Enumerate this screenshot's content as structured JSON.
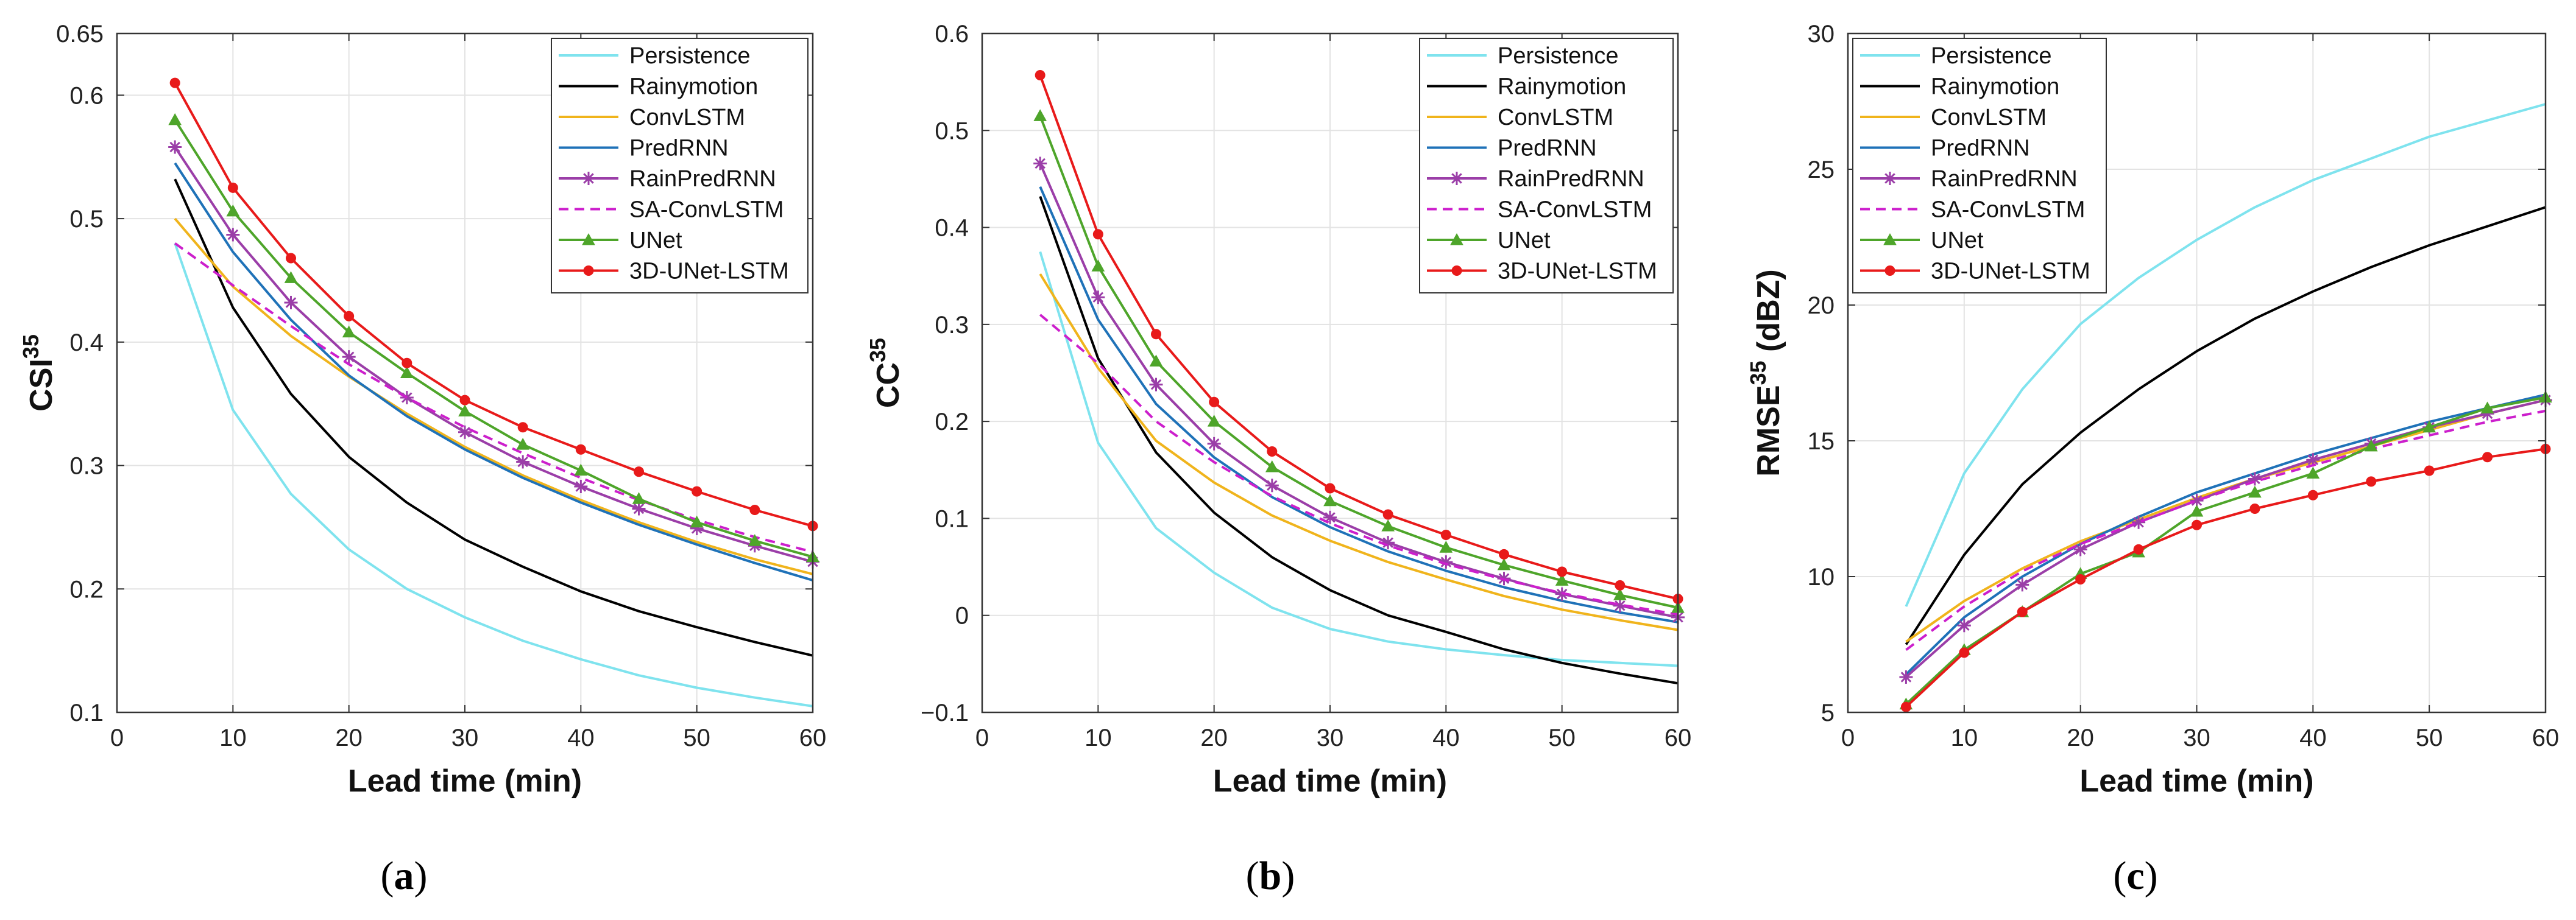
{
  "chart_data": [
    {
      "type": "line",
      "panel_label": "(a)",
      "xlabel": "Lead time (min)",
      "ylabel_main": "CSI",
      "ylabel_sup": "35",
      "ylabel_unit": "",
      "xlim": [
        0,
        60
      ],
      "ylim": [
        0.1,
        0.65
      ],
      "xticks": [
        0,
        10,
        20,
        30,
        40,
        50,
        60
      ],
      "yticks": [
        0.1,
        0.2,
        0.3,
        0.4,
        0.5,
        0.6,
        0.65
      ],
      "ytick_labels": [
        "0.1",
        "0.2",
        "0.3",
        "0.4",
        "0.5",
        "0.6",
        "0.65"
      ],
      "legend_position": "top-right",
      "grid": true,
      "x": [
        5,
        10,
        15,
        20,
        25,
        30,
        35,
        40,
        45,
        50,
        55,
        60
      ],
      "series": [
        {
          "name": "Persistence",
          "color": "#7fe3ee",
          "marker": "none",
          "dash": "solid",
          "values": [
            0.48,
            0.345,
            0.277,
            0.232,
            0.2,
            0.177,
            0.158,
            0.143,
            0.13,
            0.12,
            0.112,
            0.105
          ]
        },
        {
          "name": "Rainymotion",
          "color": "#000000",
          "marker": "none",
          "dash": "solid",
          "values": [
            0.532,
            0.428,
            0.358,
            0.307,
            0.27,
            0.24,
            0.218,
            0.198,
            0.182,
            0.169,
            0.157,
            0.146
          ]
        },
        {
          "name": "ConvLSTM",
          "color": "#f0b41c",
          "marker": "none",
          "dash": "solid",
          "values": [
            0.5,
            0.445,
            0.405,
            0.372,
            0.342,
            0.315,
            0.292,
            0.272,
            0.254,
            0.238,
            0.224,
            0.212
          ]
        },
        {
          "name": "PredRNN",
          "color": "#1f72b8",
          "marker": "none",
          "dash": "solid",
          "values": [
            0.545,
            0.473,
            0.418,
            0.373,
            0.34,
            0.313,
            0.29,
            0.27,
            0.252,
            0.236,
            0.221,
            0.207
          ]
        },
        {
          "name": "RainPredRNN",
          "color": "#9b3ea8",
          "marker": "asterisk",
          "dash": "solid",
          "values": [
            0.558,
            0.487,
            0.432,
            0.388,
            0.355,
            0.327,
            0.303,
            0.283,
            0.265,
            0.249,
            0.235,
            0.222
          ]
        },
        {
          "name": "SA-ConvLSTM",
          "color": "#cc1fcc",
          "marker": "none",
          "dash": "dashed",
          "values": [
            0.48,
            0.446,
            0.413,
            0.382,
            0.355,
            0.331,
            0.31,
            0.29,
            0.272,
            0.256,
            0.242,
            0.23
          ]
        },
        {
          "name": "UNet",
          "color": "#4ea52a",
          "marker": "triangle",
          "dash": "solid",
          "values": [
            0.58,
            0.506,
            0.452,
            0.408,
            0.375,
            0.344,
            0.317,
            0.296,
            0.273,
            0.254,
            0.239,
            0.226
          ]
        },
        {
          "name": "3D-UNet-LSTM",
          "color": "#e81a1a",
          "marker": "circle",
          "dash": "solid",
          "values": [
            0.61,
            0.525,
            0.468,
            0.421,
            0.383,
            0.353,
            0.331,
            0.313,
            0.295,
            0.279,
            0.264,
            0.251
          ]
        }
      ]
    },
    {
      "type": "line",
      "panel_label": "(b)",
      "xlabel": "Lead time (min)",
      "ylabel_main": "CC",
      "ylabel_sup": "35",
      "ylabel_unit": "",
      "xlim": [
        0,
        60
      ],
      "ylim": [
        -0.1,
        0.6
      ],
      "xticks": [
        0,
        10,
        20,
        30,
        40,
        50,
        60
      ],
      "yticks": [
        -0.1,
        0,
        0.1,
        0.2,
        0.3,
        0.4,
        0.5,
        0.6
      ],
      "ytick_labels": [
        "−0.1",
        "0",
        "0.1",
        "0.2",
        "0.3",
        "0.4",
        "0.5",
        "0.6"
      ],
      "legend_position": "top-right",
      "grid": true,
      "x": [
        5,
        10,
        15,
        20,
        25,
        30,
        35,
        40,
        45,
        50,
        55,
        60
      ],
      "series": [
        {
          "name": "Persistence",
          "color": "#7fe3ee",
          "marker": "none",
          "dash": "solid",
          "values": [
            0.375,
            0.178,
            0.09,
            0.044,
            0.008,
            -0.014,
            -0.027,
            -0.035,
            -0.041,
            -0.046,
            -0.049,
            -0.052
          ]
        },
        {
          "name": "Rainymotion",
          "color": "#000000",
          "marker": "none",
          "dash": "solid",
          "values": [
            0.432,
            0.265,
            0.168,
            0.106,
            0.06,
            0.026,
            0.0,
            -0.017,
            -0.035,
            -0.049,
            -0.06,
            -0.07
          ]
        },
        {
          "name": "ConvLSTM",
          "color": "#f0b41c",
          "marker": "none",
          "dash": "solid",
          "values": [
            0.352,
            0.255,
            0.18,
            0.137,
            0.103,
            0.077,
            0.055,
            0.037,
            0.02,
            0.006,
            -0.005,
            -0.015
          ]
        },
        {
          "name": "PredRNN",
          "color": "#1f72b8",
          "marker": "none",
          "dash": "solid",
          "values": [
            0.442,
            0.305,
            0.218,
            0.163,
            0.122,
            0.091,
            0.066,
            0.046,
            0.029,
            0.015,
            0.003,
            -0.007
          ]
        },
        {
          "name": "RainPredRNN",
          "color": "#9b3ea8",
          "marker": "asterisk",
          "dash": "solid",
          "values": [
            0.466,
            0.328,
            0.238,
            0.177,
            0.134,
            0.101,
            0.075,
            0.055,
            0.038,
            0.022,
            0.01,
            -0.002
          ]
        },
        {
          "name": "SA-ConvLSTM",
          "color": "#cc1fcc",
          "marker": "none",
          "dash": "dashed",
          "values": [
            0.31,
            0.26,
            0.2,
            0.158,
            0.123,
            0.095,
            0.072,
            0.053,
            0.037,
            0.023,
            0.011,
            0.001
          ]
        },
        {
          "name": "UNet",
          "color": "#4ea52a",
          "marker": "triangle",
          "dash": "solid",
          "values": [
            0.515,
            0.36,
            0.262,
            0.2,
            0.153,
            0.118,
            0.092,
            0.07,
            0.052,
            0.036,
            0.021,
            0.008
          ]
        },
        {
          "name": "3D-UNet-LSTM",
          "color": "#e81a1a",
          "marker": "circle",
          "dash": "solid",
          "values": [
            0.557,
            0.393,
            0.29,
            0.22,
            0.169,
            0.131,
            0.104,
            0.083,
            0.063,
            0.045,
            0.031,
            0.017
          ]
        }
      ]
    },
    {
      "type": "line",
      "panel_label": "(c)",
      "xlabel": "Lead time (min)",
      "ylabel_main": "RMSE",
      "ylabel_sup": "35",
      "ylabel_unit": " (dBZ)",
      "xlim": [
        0,
        60
      ],
      "ylim": [
        5,
        30
      ],
      "xticks": [
        0,
        10,
        20,
        30,
        40,
        50,
        60
      ],
      "yticks": [
        5,
        10,
        15,
        20,
        25,
        30
      ],
      "ytick_labels": [
        "5",
        "10",
        "15",
        "20",
        "25",
        "30"
      ],
      "legend_position": "top-left",
      "grid": true,
      "x": [
        5,
        10,
        15,
        20,
        25,
        30,
        35,
        40,
        45,
        50,
        55,
        60
      ],
      "series": [
        {
          "name": "Persistence",
          "color": "#7fe3ee",
          "marker": "none",
          "dash": "solid",
          "values": [
            8.9,
            13.8,
            16.9,
            19.3,
            21.0,
            22.4,
            23.6,
            24.6,
            25.4,
            26.2,
            26.8,
            27.4
          ]
        },
        {
          "name": "Rainymotion",
          "color": "#000000",
          "marker": "none",
          "dash": "solid",
          "values": [
            7.5,
            10.8,
            13.4,
            15.3,
            16.9,
            18.3,
            19.5,
            20.5,
            21.4,
            22.2,
            22.9,
            23.6
          ]
        },
        {
          "name": "ConvLSTM",
          "color": "#f0b41c",
          "marker": "none",
          "dash": "solid",
          "values": [
            7.6,
            9.1,
            10.3,
            11.3,
            12.1,
            12.9,
            13.6,
            14.2,
            14.8,
            15.4,
            16.0,
            16.5
          ]
        },
        {
          "name": "PredRNN",
          "color": "#1f72b8",
          "marker": "none",
          "dash": "solid",
          "values": [
            6.4,
            8.5,
            10.0,
            11.2,
            12.2,
            13.1,
            13.8,
            14.5,
            15.1,
            15.7,
            16.2,
            16.7
          ]
        },
        {
          "name": "RainPredRNN",
          "color": "#9b3ea8",
          "marker": "asterisk",
          "dash": "solid",
          "values": [
            6.3,
            8.2,
            9.7,
            11.0,
            12.0,
            12.8,
            13.6,
            14.3,
            14.9,
            15.5,
            16.0,
            16.5
          ]
        },
        {
          "name": "SA-ConvLSTM",
          "color": "#cc1fcc",
          "marker": "none",
          "dash": "dashed",
          "values": [
            7.3,
            8.9,
            10.2,
            11.2,
            12.0,
            12.8,
            13.5,
            14.1,
            14.7,
            15.2,
            15.7,
            16.1
          ]
        },
        {
          "name": "UNet",
          "color": "#4ea52a",
          "marker": "triangle",
          "dash": "solid",
          "values": [
            5.3,
            7.3,
            8.7,
            10.1,
            10.9,
            12.4,
            13.1,
            13.8,
            14.8,
            15.5,
            16.2,
            16.6
          ]
        },
        {
          "name": "3D-UNet-LSTM",
          "color": "#e81a1a",
          "marker": "circle",
          "dash": "solid",
          "values": [
            5.2,
            7.2,
            8.7,
            9.9,
            11.0,
            11.9,
            12.5,
            13.0,
            13.5,
            13.9,
            14.4,
            14.7
          ]
        }
      ]
    }
  ]
}
